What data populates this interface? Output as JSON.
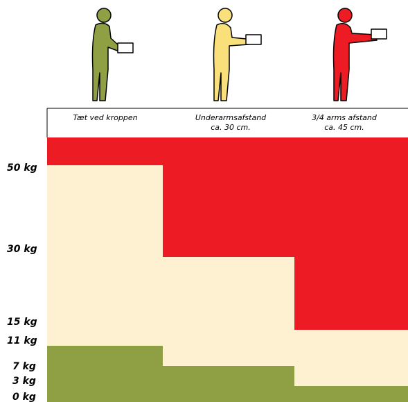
{
  "columns": [
    {
      "header": [
        "Tæt ved kroppen"
      ]
    },
    {
      "header": [
        "Underarmsafstand",
        "ca. 30 cm."
      ]
    },
    {
      "header": [
        "3/4 arms afstand",
        "ca. 45 cm."
      ]
    }
  ],
  "weight_labels": [
    "50 kg",
    "30 kg",
    "15 kg",
    "11 kg",
    "7 kg",
    "3 kg",
    "0 kg"
  ]
}
